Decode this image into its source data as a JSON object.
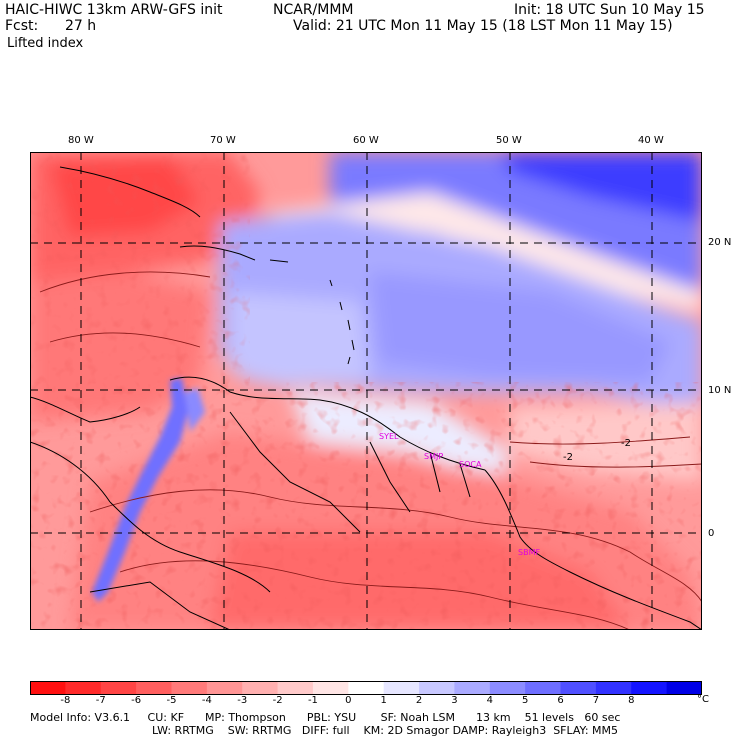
{
  "header": {
    "title": "HAIC-HIWC 13km ARW-GFS init",
    "org": "NCAR/MMM",
    "init": "Init: 18 UTC Sun 10 May 15",
    "fcst_label": "Fcst:",
    "fcst_value": "27 h",
    "valid": "Valid: 21 UTC Mon 11 May 15 (18 LST Mon 11 May 15)",
    "field": "Lifted index"
  },
  "axes": {
    "lon_labels": [
      "80 W",
      "70 W",
      "60 W",
      "50 W",
      "40 W"
    ],
    "lat_labels": [
      "20 N",
      "10 N",
      "0"
    ]
  },
  "stations": [
    "SYEL",
    "SMJP",
    "SOCA",
    "SBMF"
  ],
  "contour_label": "-2",
  "colorbar": {
    "labels": [
      "-8",
      "-7",
      "-6",
      "-5",
      "-4",
      "-3",
      "-2",
      "-1",
      "0",
      "1",
      "2",
      "3",
      "4",
      "5",
      "6",
      "7",
      "8"
    ],
    "unit": "°C",
    "colors": [
      "#ff1010",
      "#ff2a2a",
      "#ff4545",
      "#ff5f5f",
      "#ff7a7a",
      "#ff9595",
      "#ffb0b0",
      "#ffcaca",
      "#ffe5e5",
      "#ffffff",
      "#e6e6ff",
      "#c8c8ff",
      "#aaaaff",
      "#8c8cff",
      "#6e6eff",
      "#5050ff",
      "#3232ff",
      "#1414ff",
      "#0000e6"
    ]
  },
  "model_info": {
    "line1": "Model Info: V3.6.1     CU: KF      MP: Thompson      PBL: YSU       SF: Noah LSM      13 km    51 levels   60 sec",
    "line2": "LW: RRTMG    SW: RRTMG   DIFF: full    KM: 2D Smagor DAMP: Rayleigh3  SFLAY: MM5"
  }
}
